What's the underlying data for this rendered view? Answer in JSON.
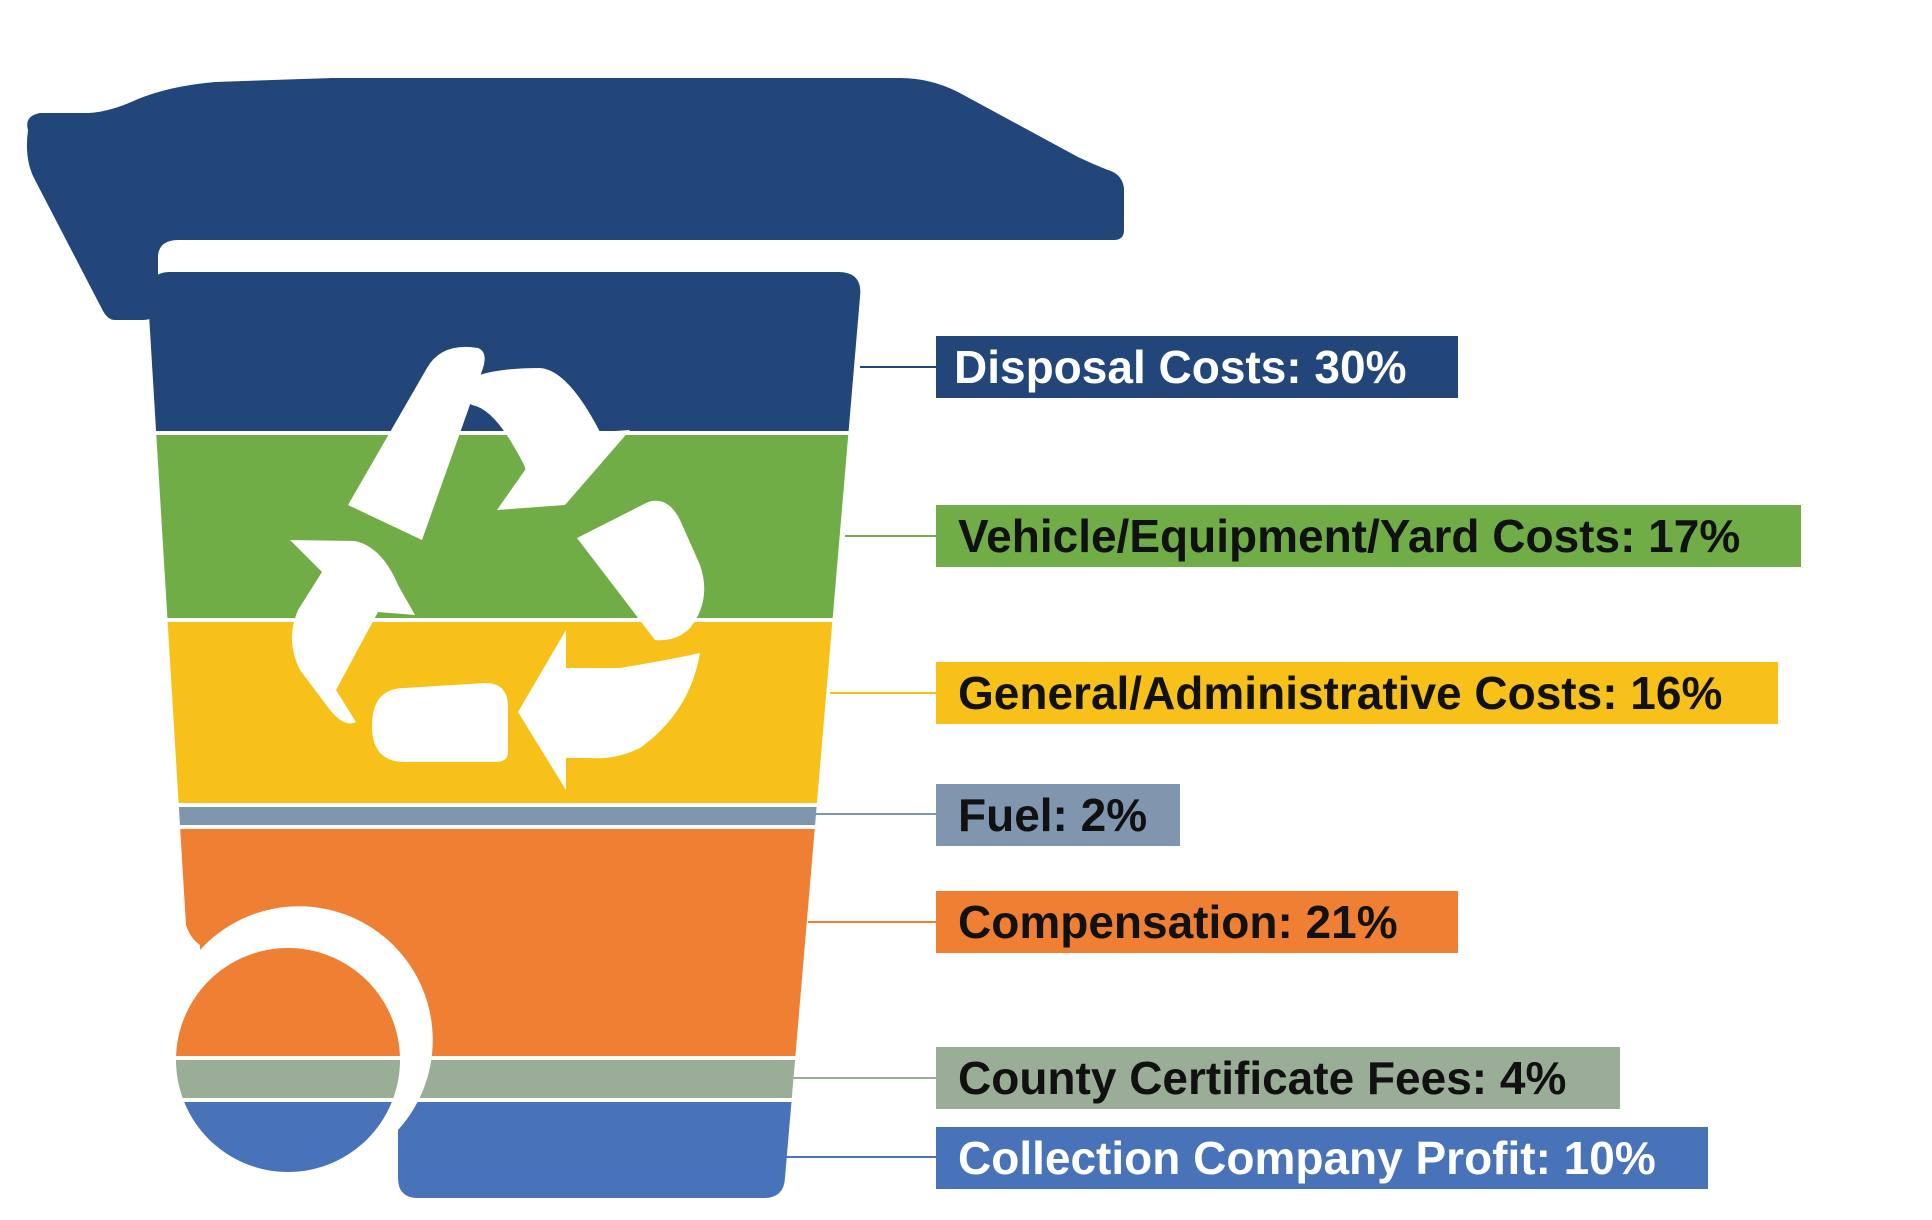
{
  "chart_data": {
    "type": "bar",
    "title": "",
    "unit": "%",
    "categories": [
      "Disposal Costs",
      "Vehicle/Equipment/Yard Costs",
      "General/Administrative Costs",
      "Fuel",
      "Compensation",
      "County Certificate Fees",
      "Collection Company Profit"
    ],
    "values": [
      30,
      17,
      16,
      2,
      21,
      4,
      10
    ],
    "labels": [
      "Disposal Costs: 30%",
      "Vehicle/Equipment/Yard Costs: 17%",
      "General/Administrative Costs: 16%",
      "Fuel: 2%",
      "Compensation: 21%",
      "County Certificate Fees: 4%",
      "Collection Company Profit: 10%"
    ],
    "colors": [
      "#22457a",
      "#70ad47",
      "#f8c11a",
      "#7f96ae",
      "#ef7f33",
      "#9aad96",
      "#4873b8"
    ],
    "label_text_colors": [
      "#ffffff",
      "#111111",
      "#111111",
      "#111111",
      "#111111",
      "#111111",
      "#ffffff"
    ],
    "lid_color": "#22457a",
    "icon": "recycle-icon"
  }
}
